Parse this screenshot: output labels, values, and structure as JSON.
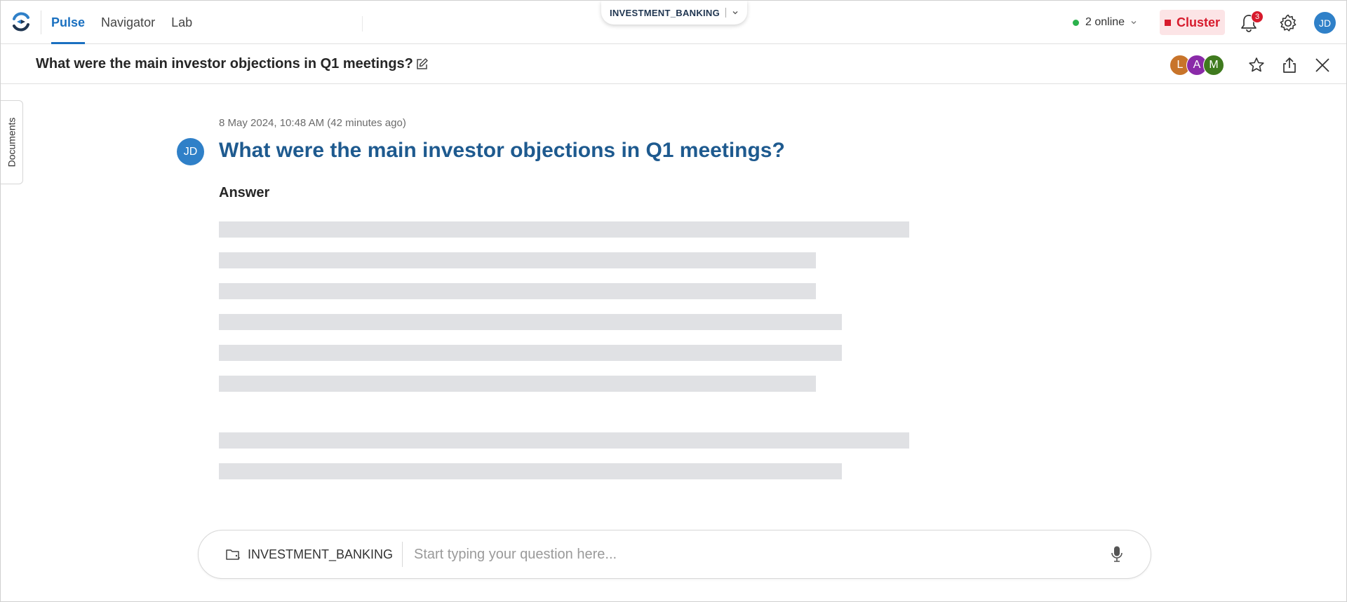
{
  "nav": {
    "items": [
      {
        "label": "Pulse",
        "active": true
      },
      {
        "label": "Navigator",
        "active": false
      },
      {
        "label": "Lab",
        "active": false
      }
    ]
  },
  "workspace": {
    "name": "INVESTMENT_BANKING"
  },
  "presence": {
    "label": "2 online",
    "color": "#2bb24c"
  },
  "cluster": {
    "label": "Cluster",
    "color": "#d71a2c"
  },
  "notifications": {
    "count": "3"
  },
  "user": {
    "initials": "JD"
  },
  "conversation": {
    "title": "What were the main investor objections in Q1 meetings?",
    "collaborators": [
      {
        "initial": "L",
        "color": "#c8742a"
      },
      {
        "initial": "A",
        "color": "#8a2aa8"
      },
      {
        "initial": "M",
        "color": "#3f7a1e"
      }
    ]
  },
  "sidebar": {
    "documents_label": "Documents"
  },
  "message": {
    "timestamp": "8 May 2024, 10:48 AM (42 minutes ago)",
    "author_initials": "JD",
    "question": "What were the main investor objections in Q1 meetings?",
    "answer_label": "Answer",
    "loading": true
  },
  "composer": {
    "workspace": "INVESTMENT_BANKING",
    "placeholder": "Start typing your question here..."
  }
}
